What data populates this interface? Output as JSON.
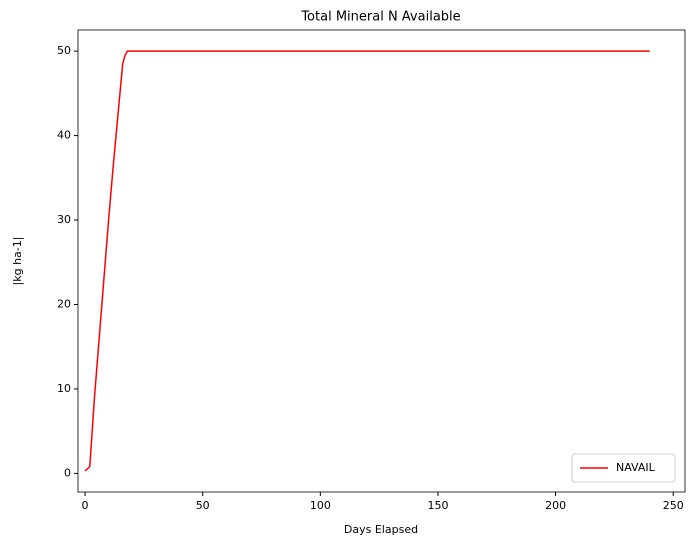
{
  "chart_data": {
    "type": "line",
    "title": "Total Mineral N Available",
    "x_label": "Days Elapsed",
    "y_label": "|kg ha-1|",
    "x": [
      0,
      2,
      4,
      6,
      8,
      10,
      12,
      14,
      16,
      17,
      18,
      240
    ],
    "series": [
      {
        "name": "NAVAIL",
        "color": "#ff0000",
        "values": [
          0.3,
          0.8,
          9,
          16,
          23,
          30,
          36.5,
          42.5,
          48.5,
          49.5,
          50,
          50
        ]
      }
    ],
    "xlim": [
      -3,
      255
    ],
    "xticks": [
      0,
      50,
      100,
      150,
      200,
      250
    ],
    "ylim": [
      -2.2,
      52.5
    ],
    "yticks": [
      0,
      10,
      20,
      30,
      40,
      50
    ],
    "grid": false,
    "legend": "lower right"
  }
}
